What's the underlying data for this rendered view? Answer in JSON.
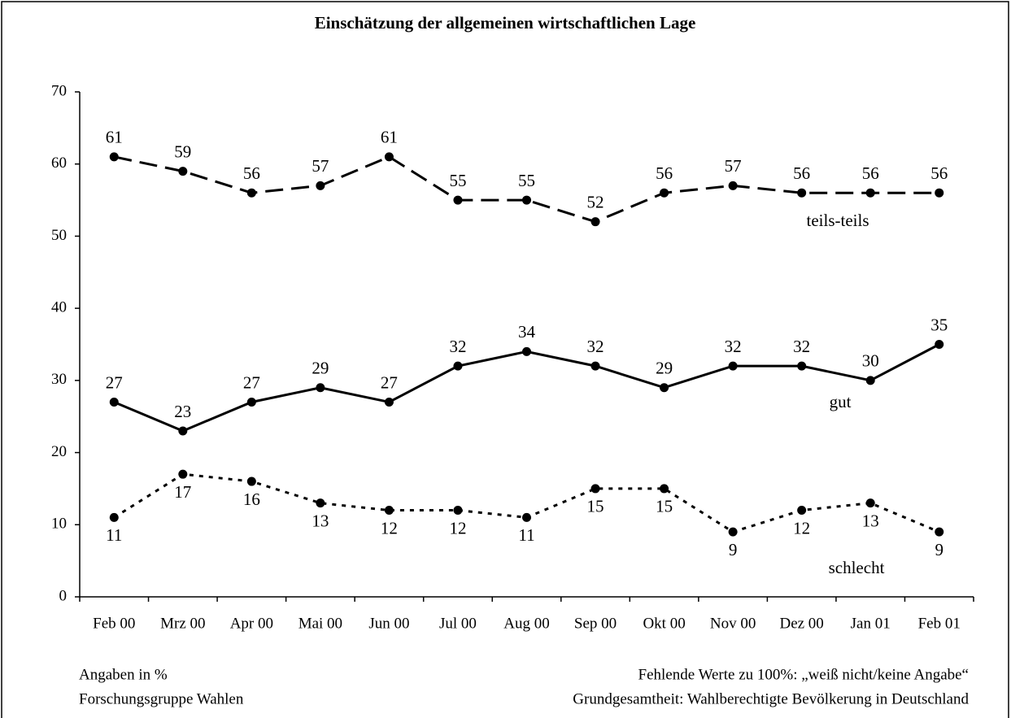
{
  "chart_data": {
    "type": "line",
    "title": "Einschätzung der allgemeinen wirtschaftlichen Lage",
    "categories": [
      "Feb 00",
      "Mrz 00",
      "Apr 00",
      "Mai 00",
      "Jun 00",
      "Jul 00",
      "Aug 00",
      "Sep 00",
      "Okt 00",
      "Nov 00",
      "Dez 00",
      "Jan 01",
      "Feb 01"
    ],
    "series": [
      {
        "name": "teils-teils",
        "color": "#000000",
        "style": "dashed",
        "values": [
          61,
          59,
          56,
          57,
          61,
          55,
          55,
          52,
          56,
          57,
          56,
          56,
          56
        ]
      },
      {
        "name": "gut",
        "color": "#000000",
        "style": "solid",
        "values": [
          27,
          23,
          27,
          29,
          27,
          32,
          34,
          32,
          29,
          32,
          32,
          30,
          35
        ]
      },
      {
        "name": "schlecht",
        "color": "#000000",
        "style": "dotted",
        "values": [
          11,
          17,
          16,
          13,
          12,
          12,
          11,
          15,
          15,
          9,
          12,
          13,
          9
        ]
      }
    ],
    "ylim": [
      0,
      70
    ],
    "yticks": [
      0,
      10,
      20,
      30,
      40,
      50,
      60,
      70
    ],
    "grid": false,
    "footnotes_left": [
      "Angaben in %",
      "Forschungsgruppe Wahlen"
    ],
    "footnotes_right": [
      "Fehlende Werte zu 100%: „weiß nicht/keine Angabe“",
      "Grundgesamtheit: Wahlberechtigte Bevölkerung in Deutschland"
    ]
  }
}
